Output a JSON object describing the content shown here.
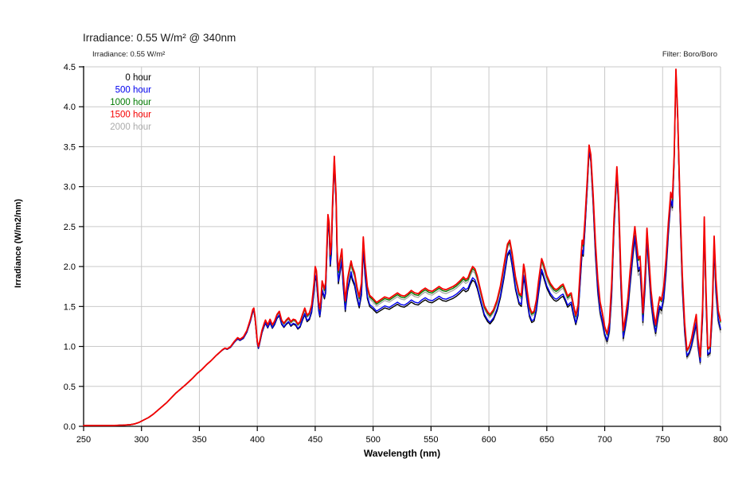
{
  "header": {
    "title": "Irradiance: 0.55 W/m² @ 340nm",
    "subtitle": "Irradiance: 0.55 W/m²",
    "filter_label": "Filter: Boro/Boro"
  },
  "chart_data": {
    "type": "line",
    "title": "Irradiance: 0.55 W/m² @ 340nm",
    "subtitle": "Irradiance: 0.55 W/m²",
    "annotation_right": "Filter: Boro/Boro",
    "xlabel": "Wavelength (nm)",
    "ylabel": "Irradiance (W/m2/nm)",
    "xlim": [
      250,
      800
    ],
    "ylim": [
      0,
      4.5
    ],
    "x_ticks": [
      250,
      300,
      350,
      400,
      450,
      500,
      550,
      600,
      650,
      700,
      750,
      800
    ],
    "y_ticks": [
      0,
      0.5,
      1,
      1.5,
      2,
      2.5,
      3,
      3.5,
      4,
      4.5
    ],
    "grid": true,
    "legend_position": "inside-top-left",
    "grid_color": "#c9c9c9",
    "axis_color": "#000000",
    "base_series_note": "points give the 1500 hour (top/red) curve; other series lie below it by sep × gap model",
    "points": [
      [
        250,
        0.01
      ],
      [
        262,
        0.01
      ],
      [
        274,
        0.01
      ],
      [
        284,
        0.015
      ],
      [
        290,
        0.02
      ],
      [
        294,
        0.03
      ],
      [
        298,
        0.05
      ],
      [
        302,
        0.08
      ],
      [
        306,
        0.11
      ],
      [
        310,
        0.15
      ],
      [
        314,
        0.2
      ],
      [
        318,
        0.25
      ],
      [
        322,
        0.3
      ],
      [
        326,
        0.36
      ],
      [
        330,
        0.42
      ],
      [
        334,
        0.47
      ],
      [
        338,
        0.52
      ],
      [
        341,
        0.56
      ],
      [
        344,
        0.6
      ],
      [
        348,
        0.66
      ],
      [
        352,
        0.71
      ],
      [
        356,
        0.77
      ],
      [
        360,
        0.82
      ],
      [
        364,
        0.88
      ],
      [
        367,
        0.92
      ],
      [
        370,
        0.96
      ],
      [
        372,
        0.98
      ],
      [
        374,
        0.97
      ],
      [
        377,
        1.0
      ],
      [
        380,
        1.06
      ],
      [
        383,
        1.11
      ],
      [
        385,
        1.09
      ],
      [
        388,
        1.12
      ],
      [
        391,
        1.2
      ],
      [
        394,
        1.34
      ],
      [
        396,
        1.46
      ],
      [
        397,
        1.48
      ],
      [
        398,
        1.38
      ],
      [
        400,
        1.06
      ],
      [
        401,
        1.0
      ],
      [
        402,
        1.06
      ],
      [
        404,
        1.2
      ],
      [
        406,
        1.29
      ],
      [
        407,
        1.33
      ],
      [
        409,
        1.27
      ],
      [
        411,
        1.34
      ],
      [
        413,
        1.27
      ],
      [
        415,
        1.32
      ],
      [
        417,
        1.4
      ],
      [
        419,
        1.44
      ],
      [
        421,
        1.33
      ],
      [
        423,
        1.29
      ],
      [
        425,
        1.33
      ],
      [
        427,
        1.36
      ],
      [
        429,
        1.31
      ],
      [
        431,
        1.34
      ],
      [
        433,
        1.33
      ],
      [
        435,
        1.28
      ],
      [
        437,
        1.31
      ],
      [
        439,
        1.4
      ],
      [
        441,
        1.48
      ],
      [
        443,
        1.39
      ],
      [
        445,
        1.42
      ],
      [
        447,
        1.52
      ],
      [
        449,
        1.8
      ],
      [
        450,
        2.0
      ],
      [
        451,
        1.95
      ],
      [
        453,
        1.55
      ],
      [
        454,
        1.47
      ],
      [
        455,
        1.6
      ],
      [
        456,
        1.82
      ],
      [
        458,
        1.72
      ],
      [
        459,
        1.8
      ],
      [
        461,
        2.65
      ],
      [
        462,
        2.55
      ],
      [
        463,
        2.15
      ],
      [
        464,
        2.3
      ],
      [
        465,
        2.8
      ],
      [
        466.5,
        3.38
      ],
      [
        468,
        2.9
      ],
      [
        469,
        2.2
      ],
      [
        470,
        1.95
      ],
      [
        471,
        2.05
      ],
      [
        473,
        2.22
      ],
      [
        474,
        1.95
      ],
      [
        476,
        1.57
      ],
      [
        478,
        1.85
      ],
      [
        480,
        2.0
      ],
      [
        481,
        2.07
      ],
      [
        482,
        2.0
      ],
      [
        484,
        1.92
      ],
      [
        486,
        1.75
      ],
      [
        488,
        1.62
      ],
      [
        490,
        1.8
      ],
      [
        491.5,
        2.37
      ],
      [
        493,
        2.05
      ],
      [
        495,
        1.75
      ],
      [
        497,
        1.64
      ],
      [
        500,
        1.6
      ],
      [
        503,
        1.55
      ],
      [
        506,
        1.58
      ],
      [
        510,
        1.62
      ],
      [
        514,
        1.6
      ],
      [
        518,
        1.64
      ],
      [
        521,
        1.67
      ],
      [
        524,
        1.64
      ],
      [
        527,
        1.63
      ],
      [
        530,
        1.66
      ],
      [
        533,
        1.7
      ],
      [
        536,
        1.67
      ],
      [
        539,
        1.66
      ],
      [
        542,
        1.7
      ],
      [
        545,
        1.73
      ],
      [
        548,
        1.7
      ],
      [
        551,
        1.69
      ],
      [
        554,
        1.72
      ],
      [
        557,
        1.75
      ],
      [
        560,
        1.72
      ],
      [
        563,
        1.71
      ],
      [
        566,
        1.73
      ],
      [
        569,
        1.75
      ],
      [
        572,
        1.78
      ],
      [
        575,
        1.82
      ],
      [
        578,
        1.87
      ],
      [
        580,
        1.84
      ],
      [
        582,
        1.86
      ],
      [
        584,
        1.94
      ],
      [
        586,
        2.0
      ],
      [
        588,
        1.97
      ],
      [
        590,
        1.88
      ],
      [
        593,
        1.69
      ],
      [
        596,
        1.51
      ],
      [
        599,
        1.43
      ],
      [
        601,
        1.4
      ],
      [
        604,
        1.46
      ],
      [
        607,
        1.58
      ],
      [
        610,
        1.76
      ],
      [
        613,
        2.02
      ],
      [
        616,
        2.28
      ],
      [
        618,
        2.33
      ],
      [
        620,
        2.17
      ],
      [
        623,
        1.87
      ],
      [
        626,
        1.67
      ],
      [
        628,
        1.64
      ],
      [
        630,
        2.03
      ],
      [
        631,
        1.95
      ],
      [
        633,
        1.7
      ],
      [
        635,
        1.5
      ],
      [
        637,
        1.42
      ],
      [
        639,
        1.44
      ],
      [
        641,
        1.58
      ],
      [
        643,
        1.83
      ],
      [
        645.5,
        2.1
      ],
      [
        647,
        2.04
      ],
      [
        650,
        1.89
      ],
      [
        653,
        1.79
      ],
      [
        656,
        1.73
      ],
      [
        658,
        1.71
      ],
      [
        660,
        1.73
      ],
      [
        662,
        1.76
      ],
      [
        664,
        1.78
      ],
      [
        666,
        1.71
      ],
      [
        668,
        1.63
      ],
      [
        670,
        1.66
      ],
      [
        671,
        1.67
      ],
      [
        673,
        1.52
      ],
      [
        675,
        1.39
      ],
      [
        677,
        1.52
      ],
      [
        679,
        2.0
      ],
      [
        680.5,
        2.33
      ],
      [
        681.5,
        2.28
      ],
      [
        683,
        2.6
      ],
      [
        685,
        3.1
      ],
      [
        686.5,
        3.52
      ],
      [
        688,
        3.4
      ],
      [
        690,
        2.9
      ],
      [
        692,
        2.3
      ],
      [
        694,
        1.85
      ],
      [
        696,
        1.56
      ],
      [
        698,
        1.42
      ],
      [
        700,
        1.25
      ],
      [
        702,
        1.16
      ],
      [
        704,
        1.3
      ],
      [
        706,
        1.8
      ],
      [
        708,
        2.6
      ],
      [
        710.5,
        3.25
      ],
      [
        712,
        2.85
      ],
      [
        714,
        1.9
      ],
      [
        716,
        1.2
      ],
      [
        718,
        1.38
      ],
      [
        720,
        1.6
      ],
      [
        722,
        1.95
      ],
      [
        724,
        2.25
      ],
      [
        726,
        2.5
      ],
      [
        727.5,
        2.3
      ],
      [
        729,
        2.1
      ],
      [
        730.5,
        2.13
      ],
      [
        732,
        1.75
      ],
      [
        733,
        1.42
      ],
      [
        735,
        1.95
      ],
      [
        736.5,
        2.48
      ],
      [
        738,
        2.15
      ],
      [
        740,
        1.7
      ],
      [
        742,
        1.44
      ],
      [
        744,
        1.27
      ],
      [
        746,
        1.5
      ],
      [
        747.5,
        1.62
      ],
      [
        749,
        1.58
      ],
      [
        751,
        1.75
      ],
      [
        753,
        2.1
      ],
      [
        755,
        2.55
      ],
      [
        757,
        2.93
      ],
      [
        758.5,
        2.85
      ],
      [
        760,
        3.4
      ],
      [
        761.5,
        4.47
      ],
      [
        763,
        3.9
      ],
      [
        765,
        2.8
      ],
      [
        767,
        1.9
      ],
      [
        769,
        1.3
      ],
      [
        771,
        0.95
      ],
      [
        773,
        1.0
      ],
      [
        775,
        1.1
      ],
      [
        777,
        1.25
      ],
      [
        779,
        1.4
      ],
      [
        780.5,
        1.1
      ],
      [
        782.5,
        0.87
      ],
      [
        784.5,
        1.5
      ],
      [
        786,
        2.62
      ],
      [
        787.5,
        1.7
      ],
      [
        789,
        0.97
      ],
      [
        791,
        1.0
      ],
      [
        793,
        1.55
      ],
      [
        794.5,
        2.38
      ],
      [
        796,
        1.85
      ],
      [
        798,
        1.45
      ],
      [
        800,
        1.32
      ]
    ],
    "series": [
      {
        "name": "0 hour",
        "color": "#000000",
        "sep": 1.0,
        "sep_nir": 1.0,
        "z": 1,
        "width": 1.4
      },
      {
        "name": "500 hour",
        "color": "#0000ee",
        "sep": 0.82,
        "sep_nir": 0.82,
        "z": 2,
        "width": 1.4
      },
      {
        "name": "1000 hour",
        "color": "#007a00",
        "sep": 0.15,
        "sep_nir": 0.15,
        "z": 3,
        "width": 1.4
      },
      {
        "name": "1500 hour",
        "color": "#f50000",
        "sep": 0.0,
        "sep_nir": 0.0,
        "z": 4,
        "width": 1.8
      },
      {
        "name": "2000 hour",
        "color": "#ababab",
        "sep": 0.33,
        "sep_nir": 1.3,
        "z": 0,
        "width": 1.4
      }
    ]
  }
}
